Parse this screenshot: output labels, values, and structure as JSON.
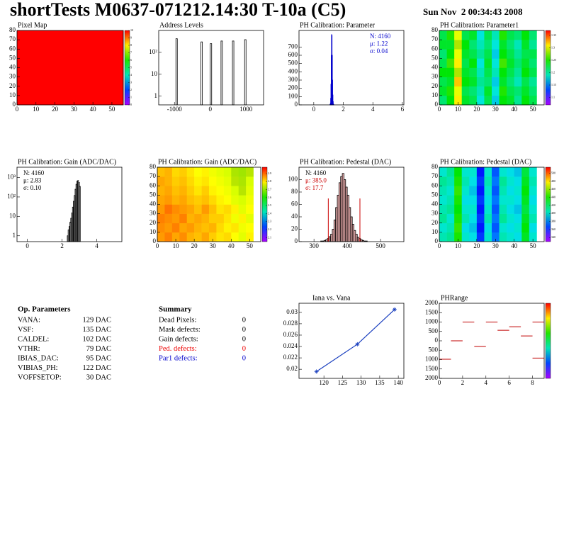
{
  "header": {
    "title": "shortTests M0637-071212.14:30 T-10a (C5)",
    "date": "Sun Nov  2 00:34:43 2008"
  },
  "chart_data": [
    {
      "type": "heatmap",
      "title": "Pixel Map",
      "xlim": [
        0,
        56
      ],
      "ylim": [
        0,
        80
      ],
      "xticks": [
        0,
        10,
        20,
        30,
        40,
        50
      ],
      "yticks": [
        0,
        10,
        20,
        30,
        40,
        50,
        60,
        70,
        80
      ],
      "xbins": [
        0,
        56
      ],
      "ybins": [
        0,
        80
      ],
      "z": [
        [
          10
        ]
      ],
      "zlim": [
        0,
        10
      ],
      "zticks": [
        0,
        1,
        2,
        3,
        4,
        5,
        6,
        7,
        8,
        9,
        10
      ]
    },
    {
      "type": "spikes",
      "title": "Address Levels",
      "log_y": true,
      "color": "#000000",
      "xlim": [
        -1440,
        1490
      ],
      "ylim": [
        0.4,
        1000
      ],
      "xticks": [
        -1000,
        0,
        1000
      ],
      "yticks": [
        1,
        10,
        {
          "value": 100,
          "label": "10²"
        }
      ],
      "x": [
        -940,
        -240,
        20,
        320,
        640,
        980
      ],
      "values": [
        420,
        300,
        250,
        330,
        330,
        380
      ]
    },
    {
      "type": "histogram",
      "title": "PH Calibration: Parameter",
      "color": "#0000cc",
      "xlim": [
        -1.0,
        6.1
      ],
      "ylim": [
        0,
        900
      ],
      "xticks": [
        0,
        2,
        4,
        6
      ],
      "yticks": [
        0,
        100,
        200,
        300,
        400,
        500,
        600,
        700
      ],
      "bins": [
        1.1,
        1.12,
        1.14,
        1.16,
        1.18,
        1.2,
        1.22,
        1.24,
        1.26,
        1.28,
        1.3,
        1.32,
        1.34,
        1.36
      ],
      "values": [
        5,
        20,
        80,
        250,
        600,
        850,
        840,
        600,
        300,
        120,
        40,
        10,
        3
      ],
      "stats": [
        {
          "text": "N: 4160",
          "color": "#0000cc"
        },
        {
          "text": "μ: 1.22",
          "color": "#0000cc"
        },
        {
          "text": "σ: 0.04",
          "color": "#0000cc"
        }
      ]
    },
    {
      "type": "heatmap",
      "title": "PH Calibration: Parameter1",
      "xlim": [
        0,
        56
      ],
      "ylim": [
        0,
        80
      ],
      "xticks": [
        0,
        10,
        20,
        30,
        40,
        50
      ],
      "yticks": [
        0,
        10,
        20,
        30,
        40,
        50,
        60,
        70,
        80
      ],
      "xbins": [
        0,
        4,
        8,
        12,
        16,
        20,
        24,
        28,
        32,
        36,
        40,
        44,
        48,
        52
      ],
      "ybins": [
        0,
        10,
        20,
        30,
        40,
        50,
        60,
        70,
        80
      ],
      "zlim": [
        1.07,
        1.37
      ],
      "zticks": [
        1.1,
        1.15,
        1.2,
        1.25,
        1.3,
        1.35
      ],
      "z": [
        [
          1.21,
          1.24,
          1.31,
          1.23,
          1.22,
          1.18,
          1.22,
          1.17,
          1.24,
          1.23,
          1.2,
          1.24,
          1.22
        ],
        [
          1.23,
          1.25,
          1.3,
          1.22,
          1.21,
          1.19,
          1.23,
          1.18,
          1.25,
          1.22,
          1.21,
          1.23,
          1.21
        ],
        [
          1.22,
          1.23,
          1.32,
          1.24,
          1.23,
          1.2,
          1.21,
          1.17,
          1.23,
          1.21,
          1.19,
          1.22,
          1.2
        ],
        [
          1.24,
          1.24,
          1.29,
          1.23,
          1.22,
          1.19,
          1.22,
          1.19,
          1.24,
          1.22,
          1.2,
          1.24,
          1.22
        ],
        [
          1.22,
          1.26,
          1.31,
          1.22,
          1.24,
          1.18,
          1.23,
          1.18,
          1.26,
          1.23,
          1.21,
          1.23,
          1.21
        ],
        [
          1.21,
          1.24,
          1.3,
          1.23,
          1.22,
          1.2,
          1.22,
          1.17,
          1.24,
          1.22,
          1.2,
          1.22,
          1.22
        ],
        [
          1.23,
          1.23,
          1.29,
          1.24,
          1.21,
          1.19,
          1.21,
          1.18,
          1.23,
          1.21,
          1.19,
          1.23,
          1.2
        ],
        [
          1.22,
          1.25,
          1.3,
          1.22,
          1.23,
          1.18,
          1.22,
          1.19,
          1.25,
          1.22,
          1.21,
          1.24,
          1.21
        ]
      ]
    },
    {
      "type": "histogram",
      "title": "PH Calibration: Gain (ADC/DAC)",
      "log_y": true,
      "color": "#000000",
      "xlim": [
        -0.6,
        5.45
      ],
      "ylim": [
        0.5,
        3400
      ],
      "xticks": [
        0,
        2,
        4
      ],
      "yticks": [
        1,
        10,
        {
          "value": 100,
          "label": "10²"
        },
        {
          "value": 1000,
          "label": "10³"
        }
      ],
      "bins": [
        2.3,
        2.35,
        2.4,
        2.45,
        2.5,
        2.55,
        2.6,
        2.65,
        2.7,
        2.75,
        2.8,
        2.85,
        2.9,
        2.95,
        3.0,
        3.05
      ],
      "values": [
        1,
        2,
        3,
        5,
        8,
        15,
        30,
        60,
        120,
        250,
        450,
        650,
        700,
        560,
        350
      ],
      "stats": [
        {
          "text": "N: 4160",
          "color": "#000000"
        },
        {
          "text": "μ: 2.83",
          "color": "#000000"
        },
        {
          "text": "σ: 0.10",
          "color": "#000000"
        }
      ]
    },
    {
      "type": "heatmap",
      "title": "PH Calibration: Gain (ADC/DAC)",
      "xlim": [
        0,
        56
      ],
      "ylim": [
        0,
        80
      ],
      "xticks": [
        0,
        10,
        20,
        30,
        40,
        50
      ],
      "yticks": [
        0,
        10,
        20,
        30,
        40,
        50,
        60,
        70,
        80
      ],
      "xbins": [
        0,
        4,
        8,
        12,
        16,
        20,
        24,
        28,
        32,
        36,
        40,
        44,
        48,
        52
      ],
      "ybins": [
        0,
        10,
        20,
        30,
        40,
        50,
        60,
        70,
        80
      ],
      "zlim": [
        2.05,
        2.98
      ],
      "zticks": [
        2.1,
        2.2,
        2.3,
        2.4,
        2.5,
        2.6,
        2.7,
        2.8,
        2.9
      ],
      "z": [
        [
          2.86,
          2.88,
          2.85,
          2.87,
          2.84,
          2.83,
          2.85,
          2.82,
          2.8,
          2.81,
          2.78,
          2.76,
          2.79
        ],
        [
          2.87,
          2.86,
          2.88,
          2.85,
          2.86,
          2.84,
          2.83,
          2.84,
          2.81,
          2.79,
          2.8,
          2.77,
          2.78
        ],
        [
          2.88,
          2.87,
          2.86,
          2.88,
          2.84,
          2.85,
          2.84,
          2.82,
          2.82,
          2.8,
          2.77,
          2.79,
          2.76
        ],
        [
          2.86,
          2.89,
          2.87,
          2.86,
          2.85,
          2.83,
          2.86,
          2.83,
          2.8,
          2.81,
          2.79,
          2.76,
          2.78
        ],
        [
          2.85,
          2.86,
          2.84,
          2.85,
          2.83,
          2.82,
          2.83,
          2.81,
          2.79,
          2.78,
          2.76,
          2.75,
          2.77
        ],
        [
          2.84,
          2.85,
          2.83,
          2.84,
          2.82,
          2.8,
          2.82,
          2.79,
          2.78,
          2.77,
          2.75,
          2.74,
          2.76
        ],
        [
          2.85,
          2.84,
          2.82,
          2.83,
          2.81,
          2.79,
          2.8,
          2.78,
          2.77,
          2.76,
          2.74,
          2.73,
          2.75
        ],
        [
          2.83,
          2.84,
          2.81,
          2.82,
          2.8,
          2.78,
          2.79,
          2.77,
          2.76,
          2.75,
          2.73,
          2.72,
          2.74
        ]
      ]
    },
    {
      "type": "histogram",
      "title": "PH Calibration: Pedestal (DAC)",
      "color": "#000000",
      "fill": "#cc2020",
      "xlim": [
        255,
        570
      ],
      "ylim": [
        0,
        120
      ],
      "xticks": [
        300,
        400,
        500
      ],
      "yticks": [
        0,
        20,
        40,
        60,
        80,
        100
      ],
      "bins": [
        320,
        325,
        330,
        335,
        340,
        345,
        350,
        355,
        360,
        365,
        370,
        375,
        380,
        385,
        390,
        395,
        400,
        405,
        410,
        415,
        420,
        425,
        430,
        435,
        440,
        445,
        450,
        455,
        460
      ],
      "values": [
        1,
        1,
        2,
        3,
        5,
        8,
        12,
        20,
        35,
        55,
        75,
        95,
        105,
        110,
        100,
        88,
        75,
        55,
        40,
        28,
        18,
        12,
        7,
        5,
        3,
        2,
        1,
        1
      ],
      "cut_lines": [
        343,
        438
      ],
      "cut_color": "#cc0000",
      "stats": [
        {
          "text": "N: 4160",
          "color": "#000000"
        },
        {
          "text": "μ: 385.0",
          "color": "#cc0000"
        },
        {
          "text": "σ: 17.7",
          "color": "#cc0000"
        }
      ]
    },
    {
      "type": "heatmap",
      "title": "PH Calibration: Pedestal (DAC)",
      "xlim": [
        0,
        56
      ],
      "ylim": [
        0,
        80
      ],
      "xticks": [
        0,
        10,
        20,
        30,
        40,
        50
      ],
      "yticks": [
        0,
        10,
        20,
        30,
        40,
        50,
        60,
        70,
        80
      ],
      "xbins": [
        0,
        4,
        8,
        12,
        16,
        20,
        24,
        28,
        32,
        36,
        40,
        44,
        48,
        52
      ],
      "ybins": [
        0,
        10,
        20,
        30,
        40,
        50,
        60,
        70,
        80
      ],
      "zlim": [
        330,
        515
      ],
      "zticks": [
        340,
        360,
        380,
        400,
        420,
        440,
        460,
        480,
        500
      ],
      "z": [
        [
          405,
          410,
          440,
          400,
          395,
          365,
          400,
          375,
          405,
          400,
          395,
          430,
          400
        ],
        [
          400,
          405,
          445,
          395,
          390,
          360,
          395,
          370,
          400,
          395,
          400,
          435,
          395
        ],
        [
          410,
          400,
          440,
          405,
          395,
          365,
          405,
          375,
          410,
          400,
          395,
          430,
          405
        ],
        [
          405,
          410,
          435,
          400,
          400,
          360,
          400,
          370,
          405,
          395,
          390,
          425,
          400
        ],
        [
          400,
          405,
          440,
          395,
          395,
          365,
          395,
          375,
          400,
          400,
          395,
          430,
          395
        ],
        [
          405,
          400,
          445,
          400,
          390,
          360,
          400,
          370,
          405,
          395,
          400,
          435,
          400
        ],
        [
          410,
          405,
          440,
          405,
          395,
          365,
          405,
          375,
          410,
          400,
          395,
          430,
          405
        ],
        [
          400,
          410,
          435,
          400,
          400,
          360,
          400,
          370,
          400,
          395,
          390,
          425,
          400
        ]
      ]
    },
    {
      "type": "line",
      "title": "Iana vs. Vana",
      "color": "#1a3fbf",
      "xlim": [
        113.3,
        141.5
      ],
      "ylim": [
        0.0184,
        0.0316
      ],
      "xticks": [
        120,
        125,
        130,
        135,
        140
      ],
      "yticks": [
        0.02,
        0.022,
        0.024,
        0.026,
        0.028,
        0.03
      ],
      "x": [
        118,
        129,
        139
      ],
      "values": [
        0.0196,
        0.0244,
        0.0305
      ]
    },
    {
      "type": "segments",
      "title": "PHRange",
      "color": "#c00000",
      "xlim": [
        0,
        9
      ],
      "ylim": [
        -2000,
        2000
      ],
      "xticks": [
        0,
        2,
        4,
        6,
        8
      ],
      "yticks": [
        {
          "value": -2000,
          "label": "2000"
        },
        {
          "value": -1500,
          "label": "1500"
        },
        {
          "value": -1000,
          "label": "1000"
        },
        {
          "value": -500,
          "label": "500"
        },
        0,
        500,
        1000,
        1500,
        2000
      ],
      "x": [
        0,
        1,
        2,
        3,
        4,
        5,
        6,
        7,
        8,
        8
      ],
      "values": [
        -980,
        0,
        1000,
        -300,
        1000,
        560,
        750,
        260,
        1000,
        -920
      ]
    }
  ],
  "parameters": {
    "title": "Op. Parameters",
    "rows": [
      [
        "VANA:",
        "129 DAC"
      ],
      [
        "VSF:",
        "135 DAC"
      ],
      [
        "CALDEL:",
        "102 DAC"
      ],
      [
        "VTHR:",
        "79 DAC"
      ],
      [
        "IBIAS_DAC:",
        "95 DAC"
      ],
      [
        "VIBIAS_PH:",
        "122 DAC"
      ],
      [
        "VOFFSETOP:",
        "30 DAC"
      ]
    ]
  },
  "summary": {
    "title": "Summary",
    "rows": [
      {
        "label": "Dead Pixels:",
        "value": 0,
        "color": "#000000"
      },
      {
        "label": "Mask defects:",
        "value": 0,
        "color": "#000000"
      },
      {
        "label": "Gain defects:",
        "value": 0,
        "color": "#000000"
      },
      {
        "label": "Ped. defects:",
        "value": 0,
        "color": "#ee0000"
      },
      {
        "label": "Par1 defects:",
        "value": 0,
        "color": "#0000cc"
      }
    ]
  }
}
